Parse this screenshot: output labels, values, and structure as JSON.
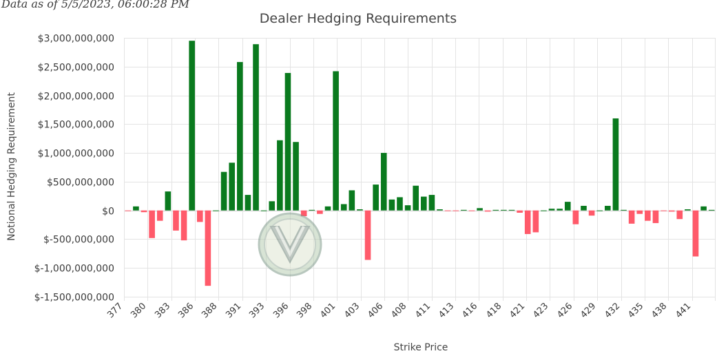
{
  "stamp": "Data as of 5/5/2023, 06:00:28 PM",
  "colors": {
    "positive": "#0a7a1e",
    "negative": "#ff5a6a"
  },
  "chart_data": {
    "type": "bar",
    "title": "Dealer Hedging Requirements",
    "xlabel": "Strike Price",
    "ylabel": "Notional Hedging Requirement",
    "ylim": [
      -1500000000,
      3000000000
    ],
    "yticks": [
      3000000000,
      2500000000,
      2000000000,
      1500000000,
      1000000000,
      500000000,
      0,
      -500000000,
      -1000000000,
      -1500000000
    ],
    "ytick_labels": [
      "$3,000,000,000",
      "$2,500,000,000",
      "$2,000,000,000",
      "$1,500,000,000",
      "$1,000,000,000",
      "$500,000,000",
      "$0",
      "$-500,000,000",
      "$-1,000,000,000",
      "$-1,500,000,000"
    ],
    "xtick_labels": [
      "377",
      "380",
      "383",
      "386",
      "388",
      "391",
      "393",
      "396",
      "398",
      "401",
      "403",
      "406",
      "408",
      "411",
      "413",
      "416",
      "418",
      "421",
      "423",
      "426",
      "429",
      "432",
      "435",
      "438",
      "441"
    ],
    "grid": true,
    "legend": "none",
    "strike_start": 377,
    "strike_end": 442,
    "values": [
      -5000000,
      70000000,
      -30000000,
      -480000000,
      -180000000,
      330000000,
      -350000000,
      -520000000,
      2950000000,
      -200000000,
      -1310000000,
      0,
      670000000,
      830000000,
      2580000000,
      270000000,
      2890000000,
      0,
      160000000,
      1220000000,
      2390000000,
      1190000000,
      -100000000,
      10000000,
      -60000000,
      70000000,
      2420000000,
      110000000,
      350000000,
      20000000,
      -860000000,
      450000000,
      1000000000,
      190000000,
      230000000,
      90000000,
      430000000,
      240000000,
      270000000,
      20000000,
      -10000000,
      -5000000,
      10000000,
      -10000000,
      40000000,
      -20000000,
      10000000,
      10000000,
      10000000,
      -40000000,
      -410000000,
      -380000000,
      0,
      30000000,
      30000000,
      150000000,
      -240000000,
      80000000,
      -90000000,
      0,
      80000000,
      1600000000,
      10000000,
      -230000000,
      -60000000,
      -180000000,
      -220000000,
      -10000000,
      -20000000,
      -150000000,
      20000000,
      -800000000,
      70000000,
      10000000
    ]
  }
}
